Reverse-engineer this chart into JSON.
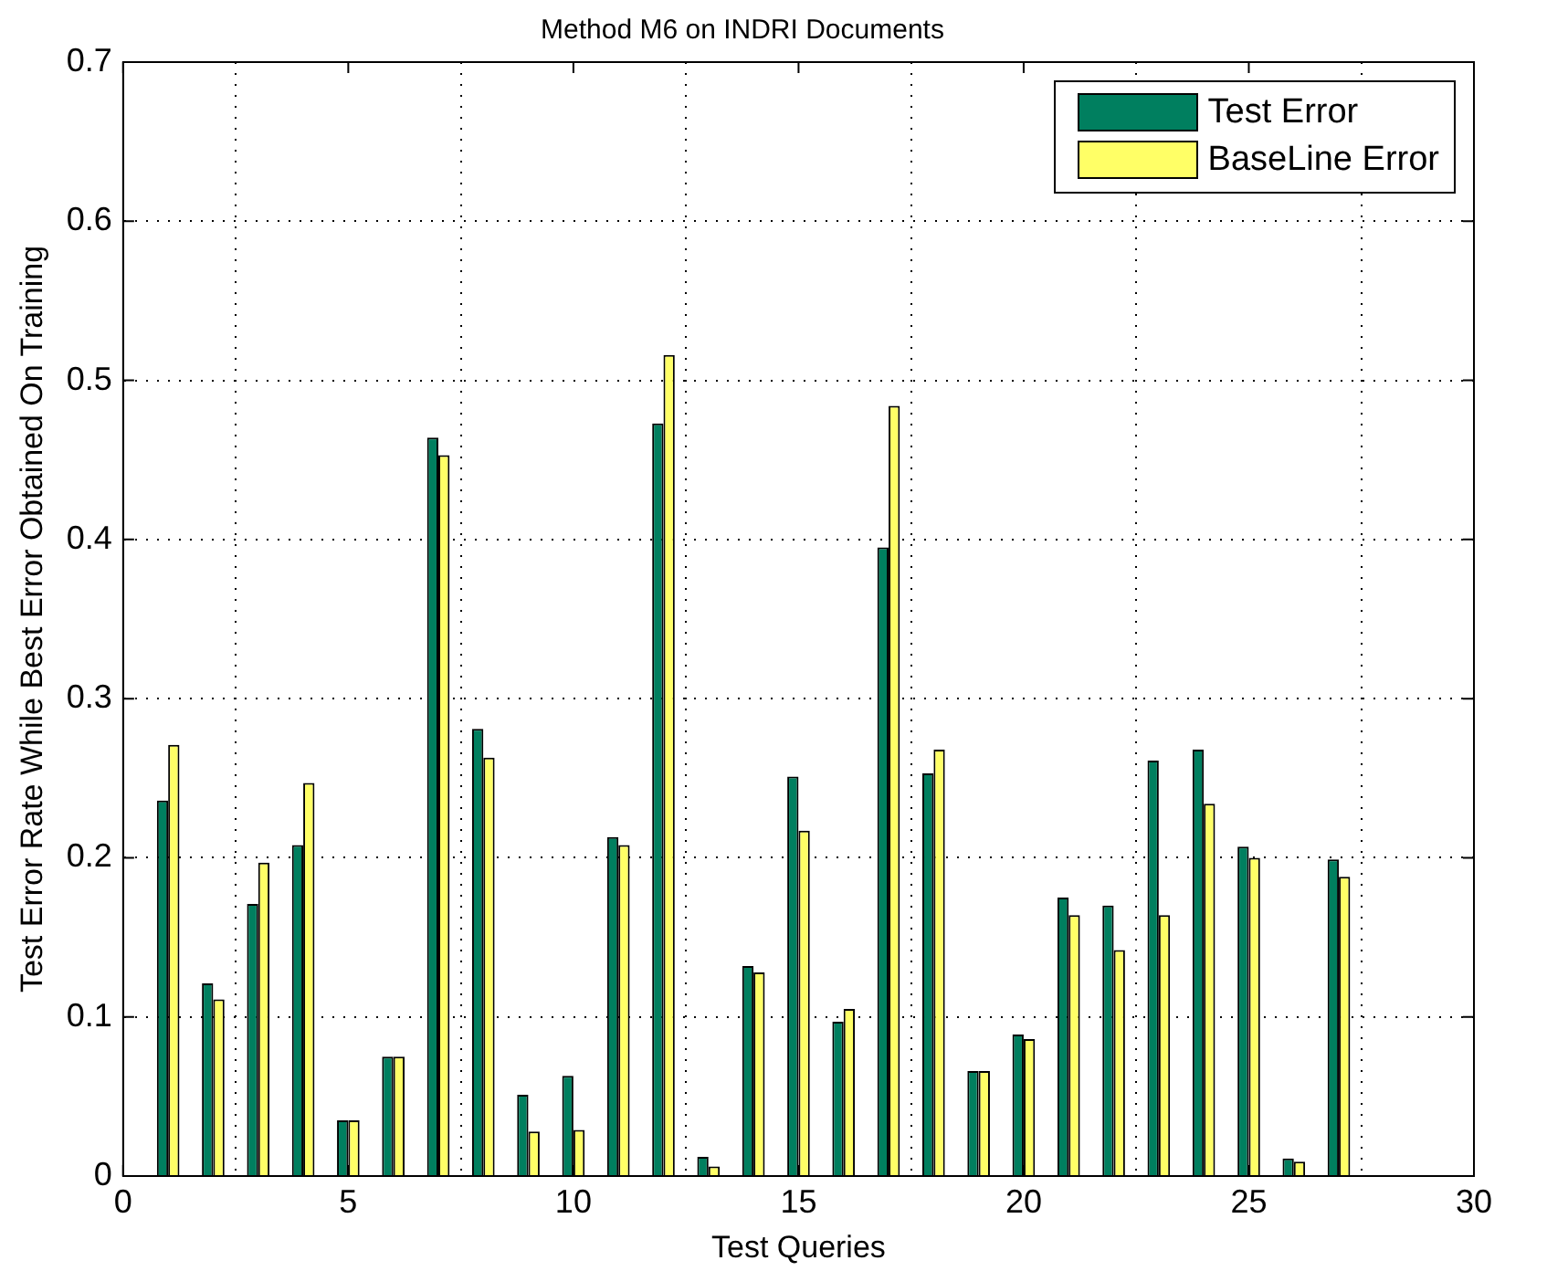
{
  "chart_data": {
    "type": "bar",
    "title": "Method M6 on INDRI Documents",
    "xlabel": "Test Queries",
    "ylabel": "Test Error Rate While Best Error Obtained On Training",
    "x": [
      1,
      2,
      3,
      4,
      5,
      6,
      7,
      8,
      9,
      10,
      11,
      12,
      13,
      14,
      15,
      16,
      17,
      18,
      19,
      20,
      21,
      22,
      23,
      24,
      25,
      26,
      27
    ],
    "series": [
      {
        "name": "Test Error",
        "color": "#007f5f",
        "values": [
          0.236,
          0.121,
          0.171,
          0.208,
          0.035,
          0.075,
          0.464,
          0.281,
          0.051,
          0.063,
          0.213,
          0.473,
          0.012,
          0.132,
          0.251,
          0.097,
          0.395,
          0.253,
          0.066,
          0.089,
          0.175,
          0.17,
          0.261,
          0.268,
          0.207,
          0.011,
          0.199
        ]
      },
      {
        "name": "BaseLine Error",
        "color": "#ffff66",
        "values": [
          0.271,
          0.111,
          0.197,
          0.247,
          0.035,
          0.075,
          0.453,
          0.263,
          0.028,
          0.029,
          0.208,
          0.516,
          0.006,
          0.128,
          0.217,
          0.105,
          0.484,
          0.268,
          0.066,
          0.086,
          0.164,
          0.142,
          0.164,
          0.234,
          0.2,
          0.009,
          0.188
        ]
      }
    ],
    "xlim": [
      0,
      30
    ],
    "xticks": [
      0,
      5,
      10,
      15,
      20,
      25,
      30
    ],
    "ylim": [
      0,
      0.7
    ],
    "yticks": [
      0,
      0.1,
      0.2,
      0.3,
      0.4,
      0.5,
      0.6,
      0.7
    ],
    "grid": true,
    "legend": "top right"
  }
}
